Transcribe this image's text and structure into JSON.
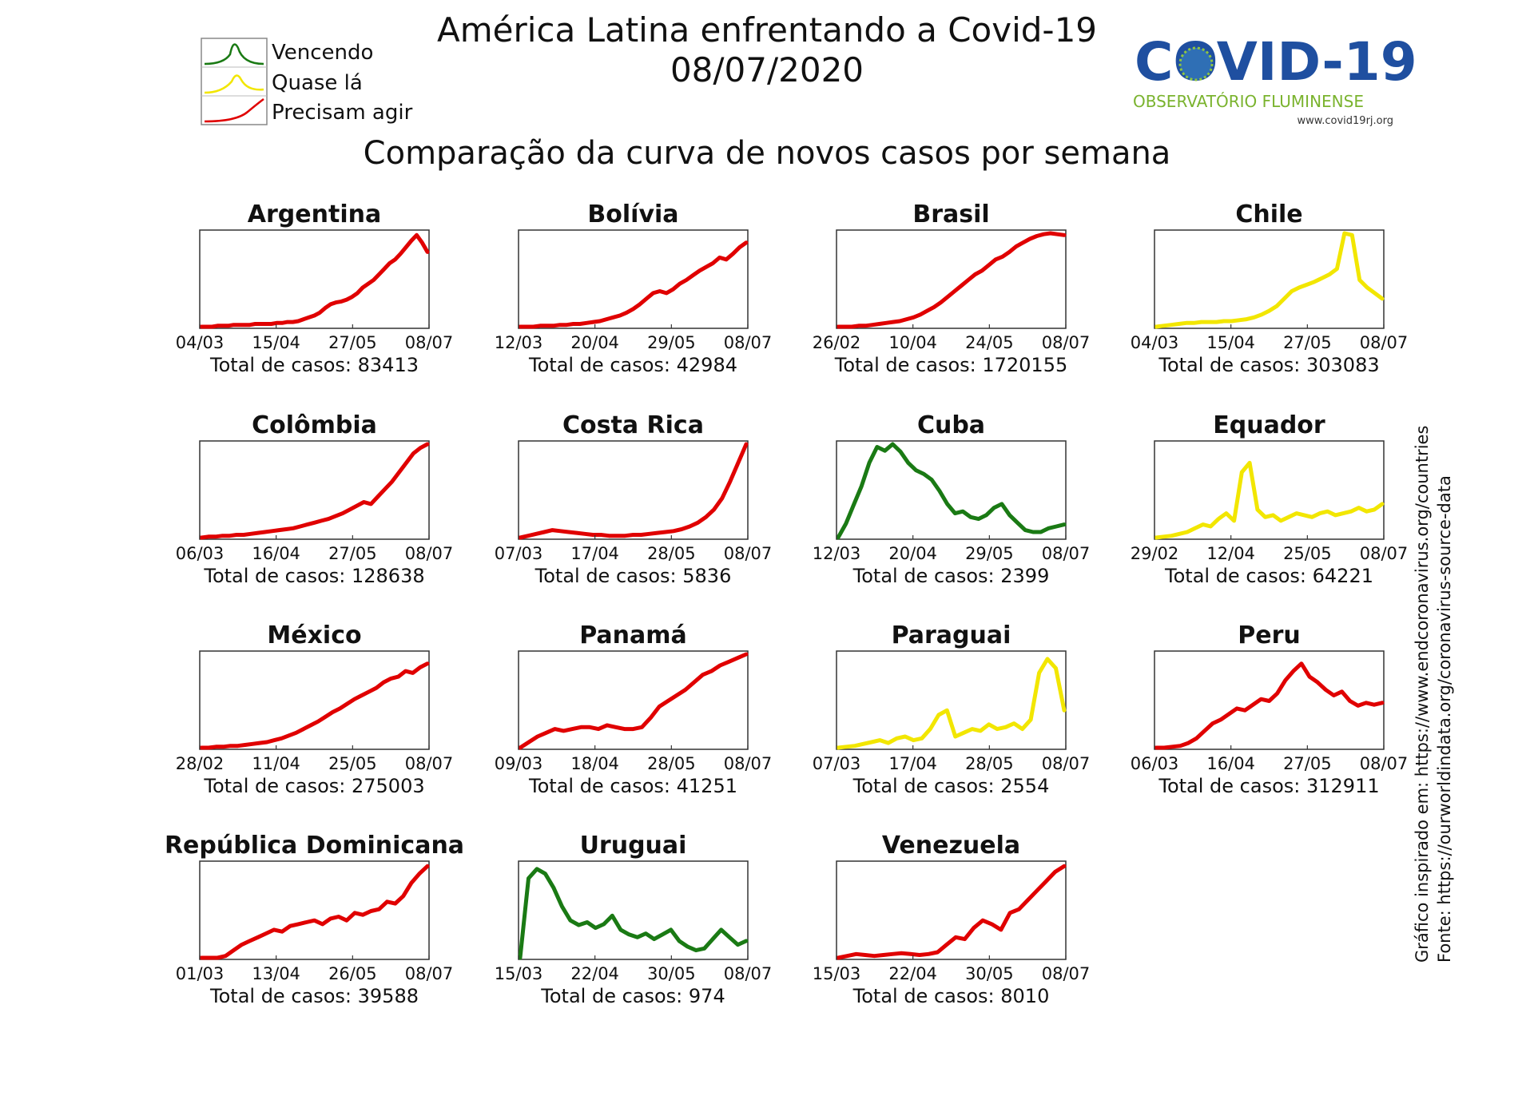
{
  "header": {
    "title": "América Latina enfrentando a Covid-19",
    "date": "08/07/2020",
    "subtitle": "Comparação da curva de novos casos por semana"
  },
  "legend": {
    "items": [
      {
        "label": "Vencendo",
        "color": "#1a7a14"
      },
      {
        "label": "Quase lá",
        "color": "#f2e600"
      },
      {
        "label": "Precisam agir",
        "color": "#e00000"
      }
    ]
  },
  "logo": {
    "text": "COVID-19",
    "org": "OBSERVATÓRIO FLUMINENSE",
    "url": "www.covid19rj.org"
  },
  "source_note": {
    "line1": "Gráfico inspirado em: https://www.endcoronavirus.org/countries",
    "line2": "Fonte: https://ourworldindata.org/coronavirus-source-data"
  },
  "total_prefix": "Total de casos:",
  "colors": {
    "red": "#e00000",
    "yellow": "#f2e600",
    "green": "#1a7a14"
  },
  "chart_data": [
    {
      "type": "line",
      "title": "Argentina",
      "status": "red",
      "xticks": [
        "04/03",
        "15/04",
        "27/05",
        "08/07"
      ],
      "total": "83413",
      "values": [
        0,
        0,
        0,
        0.01,
        0.01,
        0.01,
        0.02,
        0.02,
        0.02,
        0.02,
        0.03,
        0.03,
        0.03,
        0.03,
        0.04,
        0.04,
        0.05,
        0.05,
        0.06,
        0.08,
        0.1,
        0.12,
        0.15,
        0.2,
        0.24,
        0.26,
        0.27,
        0.29,
        0.32,
        0.36,
        0.42,
        0.46,
        0.5,
        0.56,
        0.62,
        0.68,
        0.72,
        0.78,
        0.85,
        0.92,
        0.98,
        0.9,
        0.8
      ]
    },
    {
      "type": "line",
      "title": "Bolívia",
      "status": "red",
      "xticks": [
        "12/03",
        "20/04",
        "29/05",
        "08/07"
      ],
      "total": "42984",
      "values": [
        0,
        0,
        0,
        0.01,
        0.01,
        0.01,
        0.02,
        0.02,
        0.03,
        0.03,
        0.04,
        0.05,
        0.06,
        0.08,
        0.1,
        0.12,
        0.15,
        0.19,
        0.24,
        0.3,
        0.36,
        0.38,
        0.36,
        0.4,
        0.46,
        0.5,
        0.55,
        0.6,
        0.64,
        0.68,
        0.74,
        0.72,
        0.78,
        0.85,
        0.9
      ]
    },
    {
      "type": "line",
      "title": "Brasil",
      "status": "red",
      "xticks": [
        "26/02",
        "10/04",
        "24/05",
        "08/07"
      ],
      "total": "1720155",
      "values": [
        0,
        0,
        0,
        0.01,
        0.01,
        0.02,
        0.03,
        0.04,
        0.05,
        0.06,
        0.08,
        0.1,
        0.13,
        0.17,
        0.21,
        0.26,
        0.32,
        0.38,
        0.44,
        0.5,
        0.56,
        0.6,
        0.66,
        0.72,
        0.75,
        0.8,
        0.86,
        0.9,
        0.94,
        0.97,
        0.99,
        1,
        0.99,
        0.98
      ]
    },
    {
      "type": "line",
      "title": "Chile",
      "status": "yellow",
      "xticks": [
        "04/03",
        "15/04",
        "27/05",
        "08/07"
      ],
      "total": "303083",
      "values": [
        0,
        0.01,
        0.02,
        0.03,
        0.04,
        0.04,
        0.05,
        0.05,
        0.05,
        0.06,
        0.06,
        0.07,
        0.08,
        0.1,
        0.13,
        0.17,
        0.22,
        0.3,
        0.38,
        0.42,
        0.45,
        0.48,
        0.52,
        0.56,
        0.62,
        1,
        0.98,
        0.5,
        0.42,
        0.36,
        0.3
      ]
    },
    {
      "type": "line",
      "title": "Colômbia",
      "status": "red",
      "xticks": [
        "06/03",
        "16/04",
        "27/05",
        "08/07"
      ],
      "total": "128638",
      "values": [
        0,
        0.01,
        0.01,
        0.02,
        0.02,
        0.03,
        0.03,
        0.04,
        0.05,
        0.06,
        0.07,
        0.08,
        0.09,
        0.1,
        0.12,
        0.14,
        0.16,
        0.18,
        0.2,
        0.23,
        0.26,
        0.3,
        0.34,
        0.38,
        0.36,
        0.44,
        0.52,
        0.6,
        0.7,
        0.8,
        0.9,
        0.96,
        1
      ]
    },
    {
      "type": "line",
      "title": "Costa Rica",
      "status": "red",
      "xticks": [
        "07/03",
        "17/04",
        "28/05",
        "08/07"
      ],
      "total": "5836",
      "values": [
        0,
        0.02,
        0.04,
        0.06,
        0.08,
        0.07,
        0.06,
        0.05,
        0.04,
        0.03,
        0.03,
        0.02,
        0.02,
        0.02,
        0.03,
        0.03,
        0.04,
        0.05,
        0.06,
        0.07,
        0.09,
        0.12,
        0.16,
        0.22,
        0.3,
        0.42,
        0.6,
        0.8,
        1
      ]
    },
    {
      "type": "line",
      "title": "Cuba",
      "status": "green",
      "xticks": [
        "12/03",
        "20/04",
        "29/05",
        "08/07"
      ],
      "total": "2399",
      "values": [
        0,
        0.15,
        0.35,
        0.55,
        0.8,
        0.97,
        0.93,
        1,
        0.92,
        0.8,
        0.72,
        0.68,
        0.62,
        0.5,
        0.36,
        0.26,
        0.28,
        0.22,
        0.2,
        0.24,
        0.32,
        0.36,
        0.24,
        0.16,
        0.08,
        0.06,
        0.06,
        0.1,
        0.12,
        0.14
      ]
    },
    {
      "type": "line",
      "title": "Equador",
      "status": "yellow",
      "xticks": [
        "29/02",
        "12/04",
        "25/05",
        "08/07"
      ],
      "total": "64221",
      "values": [
        0,
        0.01,
        0.02,
        0.04,
        0.06,
        0.1,
        0.14,
        0.12,
        0.2,
        0.26,
        0.18,
        0.7,
        0.8,
        0.3,
        0.22,
        0.24,
        0.18,
        0.22,
        0.26,
        0.24,
        0.22,
        0.26,
        0.28,
        0.24,
        0.26,
        0.28,
        0.32,
        0.28,
        0.3,
        0.36
      ]
    },
    {
      "type": "line",
      "title": "México",
      "status": "red",
      "xticks": [
        "28/02",
        "11/04",
        "25/05",
        "08/07"
      ],
      "total": "275003",
      "values": [
        0,
        0,
        0.01,
        0.01,
        0.02,
        0.02,
        0.03,
        0.04,
        0.05,
        0.06,
        0.08,
        0.1,
        0.13,
        0.16,
        0.2,
        0.24,
        0.28,
        0.33,
        0.38,
        0.42,
        0.47,
        0.52,
        0.56,
        0.6,
        0.64,
        0.7,
        0.74,
        0.76,
        0.82,
        0.8,
        0.86,
        0.9
      ]
    },
    {
      "type": "line",
      "title": "Panamá",
      "status": "red",
      "xticks": [
        "09/03",
        "18/04",
        "28/05",
        "08/07"
      ],
      "total": "41251",
      "values": [
        0,
        0.06,
        0.12,
        0.16,
        0.2,
        0.18,
        0.2,
        0.22,
        0.22,
        0.2,
        0.24,
        0.22,
        0.2,
        0.2,
        0.22,
        0.32,
        0.44,
        0.5,
        0.56,
        0.62,
        0.7,
        0.78,
        0.82,
        0.88,
        0.92,
        0.96,
        1
      ]
    },
    {
      "type": "line",
      "title": "Paraguai",
      "status": "yellow",
      "xticks": [
        "07/03",
        "17/04",
        "28/05",
        "08/07"
      ],
      "total": "2554",
      "values": [
        0,
        0.01,
        0.02,
        0.04,
        0.06,
        0.08,
        0.05,
        0.1,
        0.12,
        0.08,
        0.1,
        0.2,
        0.35,
        0.4,
        0.12,
        0.16,
        0.2,
        0.18,
        0.25,
        0.2,
        0.22,
        0.26,
        0.2,
        0.3,
        0.8,
        0.95,
        0.85,
        0.4
      ]
    },
    {
      "type": "line",
      "title": "Peru",
      "status": "red",
      "xticks": [
        "06/03",
        "16/04",
        "27/05",
        "08/07"
      ],
      "total": "312911",
      "values": [
        0,
        0,
        0.01,
        0.02,
        0.05,
        0.1,
        0.18,
        0.26,
        0.3,
        0.36,
        0.42,
        0.4,
        0.46,
        0.52,
        0.5,
        0.58,
        0.72,
        0.82,
        0.9,
        0.76,
        0.7,
        0.62,
        0.56,
        0.6,
        0.5,
        0.45,
        0.48,
        0.46,
        0.48
      ]
    },
    {
      "type": "line",
      "title": "República Dominicana",
      "status": "red",
      "xticks": [
        "01/03",
        "13/04",
        "26/05",
        "08/07"
      ],
      "total": "39588",
      "values": [
        0,
        0,
        0,
        0.02,
        0.08,
        0.14,
        0.18,
        0.22,
        0.26,
        0.3,
        0.28,
        0.34,
        0.36,
        0.38,
        0.4,
        0.36,
        0.42,
        0.44,
        0.4,
        0.48,
        0.46,
        0.5,
        0.52,
        0.6,
        0.58,
        0.66,
        0.8,
        0.9,
        0.98
      ]
    },
    {
      "type": "line",
      "title": "Uruguai",
      "status": "green",
      "xticks": [
        "15/03",
        "22/04",
        "30/05",
        "08/07"
      ],
      "total": "974",
      "values": [
        0,
        0.85,
        0.95,
        0.9,
        0.75,
        0.55,
        0.4,
        0.35,
        0.38,
        0.32,
        0.36,
        0.45,
        0.3,
        0.25,
        0.22,
        0.26,
        0.2,
        0.25,
        0.3,
        0.18,
        0.12,
        0.08,
        0.1,
        0.2,
        0.3,
        0.22,
        0.14,
        0.18
      ]
    },
    {
      "type": "line",
      "title": "Venezuela",
      "status": "red",
      "xticks": [
        "15/03",
        "22/04",
        "30/05",
        "08/07"
      ],
      "total": "8010",
      "values": [
        0,
        0.02,
        0.04,
        0.03,
        0.02,
        0.03,
        0.04,
        0.05,
        0.04,
        0.03,
        0.04,
        0.06,
        0.14,
        0.22,
        0.2,
        0.32,
        0.4,
        0.36,
        0.3,
        0.48,
        0.52,
        0.62,
        0.72,
        0.82,
        0.92,
        0.98
      ]
    }
  ]
}
